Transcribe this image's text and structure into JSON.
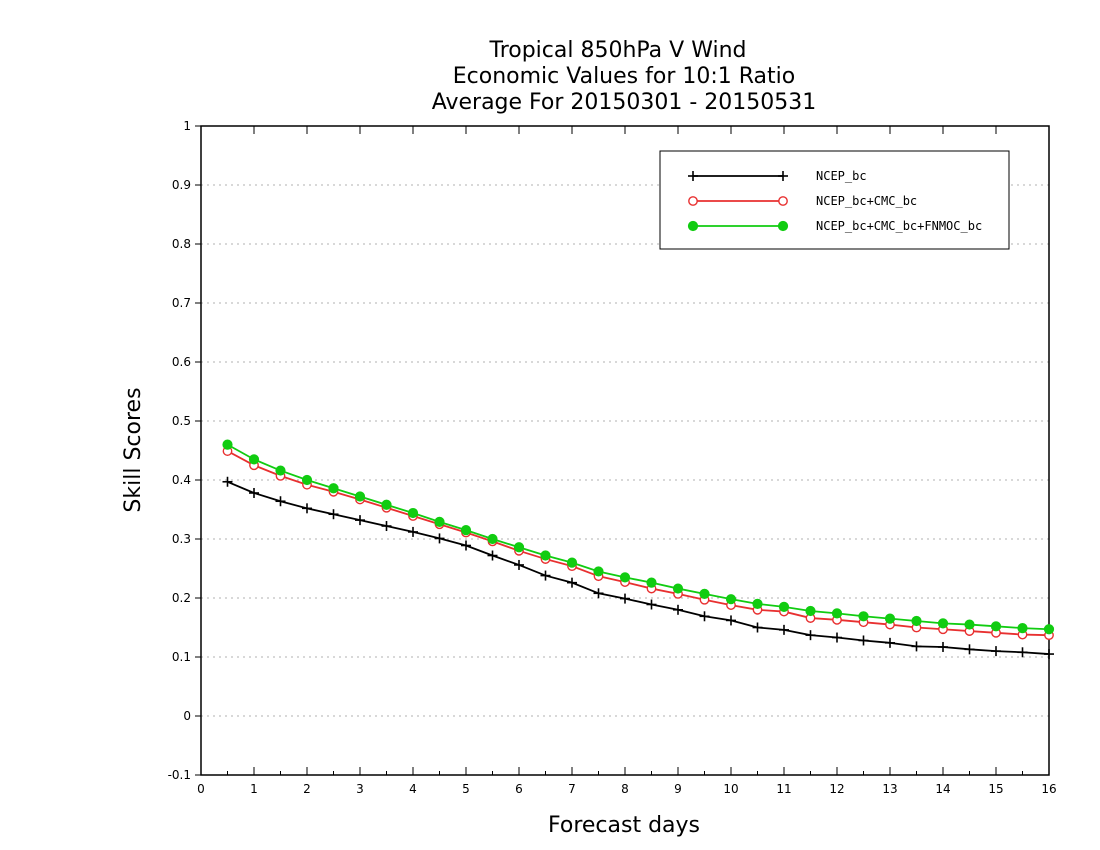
{
  "chart_data": {
    "type": "line",
    "title": [
      "Tropical 850hPa V Wind",
      "Economic Values for 10:1 Ratio",
      "Average For 20150301 - 20150531"
    ],
    "xlabel": "Forecast days",
    "ylabel": "Skill Scores",
    "xlim": [
      0,
      16
    ],
    "ylim": [
      -0.1,
      1
    ],
    "xticks": [
      0,
      1,
      2,
      3,
      4,
      5,
      6,
      7,
      8,
      9,
      10,
      11,
      12,
      13,
      14,
      15,
      16
    ],
    "yticks": [
      -0.1,
      0,
      0.1,
      0.2,
      0.3,
      0.4,
      0.5,
      0.6,
      0.7,
      0.8,
      0.9,
      1
    ],
    "ytick_labels": [
      "-0.1",
      "0",
      "0.1",
      "0.2",
      "0.3",
      "0.4",
      "0.5",
      "0.6",
      "0.7",
      "0.8",
      "0.9",
      "1"
    ],
    "grid": true,
    "legend_position": "top-right",
    "x": [
      0.5,
      1,
      1.5,
      2,
      2.5,
      3,
      3.5,
      4,
      4.5,
      5,
      5.5,
      6,
      6.5,
      7,
      7.5,
      8,
      8.5,
      9,
      9.5,
      10,
      10.5,
      11,
      11.5,
      12,
      12.5,
      13,
      13.5,
      14,
      14.5,
      15,
      15.5,
      16
    ],
    "series": [
      {
        "name": "NCEP_bc",
        "color": "#000000",
        "marker": "plus",
        "values": [
          0.397,
          0.378,
          0.364,
          0.352,
          0.342,
          0.332,
          0.322,
          0.312,
          0.301,
          0.289,
          0.272,
          0.256,
          0.238,
          0.226,
          0.208,
          0.199,
          0.189,
          0.18,
          0.169,
          0.162,
          0.15,
          0.146,
          0.137,
          0.133,
          0.128,
          0.124,
          0.118,
          0.117,
          0.113,
          0.11,
          0.108,
          0.105
        ]
      },
      {
        "name": "NCEP_bc+CMC_bc",
        "color": "#e83030",
        "marker": "open-circle",
        "values": [
          0.449,
          0.425,
          0.407,
          0.392,
          0.38,
          0.367,
          0.353,
          0.339,
          0.325,
          0.311,
          0.296,
          0.28,
          0.266,
          0.254,
          0.237,
          0.227,
          0.216,
          0.207,
          0.197,
          0.188,
          0.18,
          0.177,
          0.166,
          0.163,
          0.159,
          0.155,
          0.15,
          0.147,
          0.144,
          0.141,
          0.138,
          0.137
        ]
      },
      {
        "name": "NCEP_bc+CMC_bc+FNMOC_bc",
        "color": "#11cc11",
        "marker": "filled-circle",
        "values": [
          0.46,
          0.435,
          0.416,
          0.4,
          0.386,
          0.372,
          0.358,
          0.344,
          0.329,
          0.315,
          0.3,
          0.286,
          0.272,
          0.26,
          0.245,
          0.235,
          0.226,
          0.216,
          0.207,
          0.198,
          0.19,
          0.185,
          0.178,
          0.174,
          0.169,
          0.165,
          0.161,
          0.157,
          0.155,
          0.152,
          0.149,
          0.147
        ]
      }
    ]
  }
}
